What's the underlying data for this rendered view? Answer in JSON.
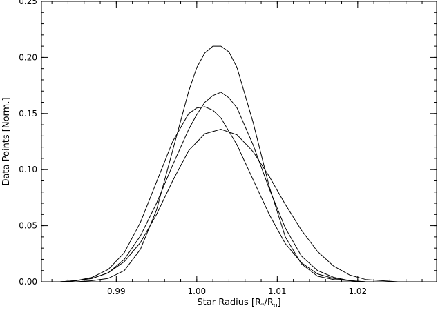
{
  "chart_data": {
    "type": "line",
    "title": "",
    "xlabel_parts": {
      "prefix": "Star Radius [R",
      "sub1": "*",
      "mid": "/R",
      "sub2": "o",
      "suffix": "]"
    },
    "ylabel": "Data Points [Norm.]",
    "xlim": [
      0.9807,
      1.0298
    ],
    "ylim": [
      0,
      0.25
    ],
    "xticks": [
      {
        "value": 0.99,
        "label": "0.99"
      },
      {
        "value": 1.0,
        "label": "1.00"
      },
      {
        "value": 1.01,
        "label": "1.01"
      },
      {
        "value": 1.02,
        "label": "1.02"
      }
    ],
    "yticks": [
      {
        "value": 0.0,
        "label": "0.00"
      },
      {
        "value": 0.05,
        "label": "0.05"
      },
      {
        "value": 0.1,
        "label": "0.10"
      },
      {
        "value": 0.15,
        "label": "0.15"
      },
      {
        "value": 0.2,
        "label": "0.20"
      },
      {
        "value": 0.25,
        "label": "0.25"
      }
    ],
    "x_minor_step": 0.002,
    "y_minor_step": 0.01,
    "grid": false,
    "line_color": "#000000",
    "series": [
      {
        "x": [
          0.981,
          0.983,
          0.985,
          0.987,
          0.989,
          0.991,
          0.993,
          0.995,
          0.997,
          0.999,
          1.0,
          1.001,
          1.002,
          1.003,
          1.004,
          1.005,
          1.007,
          1.009,
          1.011,
          1.013,
          1.015,
          1.017,
          1.019,
          1.021,
          1.023,
          1.025,
          1.027,
          1.029
        ],
        "y": [
          0.0,
          0.0,
          0.0,
          0.001,
          0.003,
          0.01,
          0.029,
          0.064,
          0.117,
          0.17,
          0.191,
          0.204,
          0.21,
          0.21,
          0.205,
          0.191,
          0.142,
          0.085,
          0.04,
          0.016,
          0.005,
          0.002,
          0.001,
          0.0,
          0.0,
          0.0,
          0.0,
          0.0
        ]
      },
      {
        "x": [
          0.981,
          0.983,
          0.985,
          0.987,
          0.989,
          0.991,
          0.993,
          0.995,
          0.997,
          0.999,
          1.0,
          1.001,
          1.002,
          1.003,
          1.004,
          1.005,
          1.007,
          1.009,
          1.011,
          1.013,
          1.015,
          1.017,
          1.019,
          1.021,
          1.023,
          1.025,
          1.027,
          1.029
        ],
        "y": [
          0.0,
          0.0,
          0.001,
          0.003,
          0.008,
          0.02,
          0.041,
          0.07,
          0.104,
          0.136,
          0.149,
          0.16,
          0.166,
          0.169,
          0.164,
          0.155,
          0.122,
          0.083,
          0.048,
          0.023,
          0.01,
          0.004,
          0.001,
          0.0,
          0.0,
          0.0,
          0.0,
          0.0
        ]
      },
      {
        "x": [
          0.981,
          0.983,
          0.985,
          0.987,
          0.989,
          0.991,
          0.993,
          0.995,
          0.997,
          0.999,
          1.0,
          1.001,
          1.002,
          1.003,
          1.005,
          1.007,
          1.009,
          1.011,
          1.013,
          1.015,
          1.017,
          1.019,
          1.021,
          1.023,
          1.025,
          1.027,
          1.029
        ],
        "y": [
          0.0,
          0.0,
          0.001,
          0.004,
          0.011,
          0.026,
          0.053,
          0.089,
          0.125,
          0.15,
          0.155,
          0.156,
          0.153,
          0.146,
          0.122,
          0.091,
          0.06,
          0.034,
          0.017,
          0.007,
          0.003,
          0.001,
          0.0,
          0.0,
          0.0,
          0.0,
          0.0
        ]
      },
      {
        "x": [
          0.981,
          0.983,
          0.985,
          0.987,
          0.989,
          0.991,
          0.993,
          0.995,
          0.997,
          0.999,
          1.001,
          1.003,
          1.005,
          1.007,
          1.009,
          1.011,
          1.013,
          1.015,
          1.017,
          1.019,
          1.021,
          1.023,
          1.025,
          1.027,
          1.029
        ],
        "y": [
          0.0,
          0.0,
          0.001,
          0.003,
          0.008,
          0.018,
          0.035,
          0.06,
          0.09,
          0.117,
          0.132,
          0.136,
          0.131,
          0.116,
          0.094,
          0.069,
          0.046,
          0.027,
          0.014,
          0.006,
          0.002,
          0.001,
          0.0,
          0.0,
          0.0
        ]
      }
    ]
  }
}
